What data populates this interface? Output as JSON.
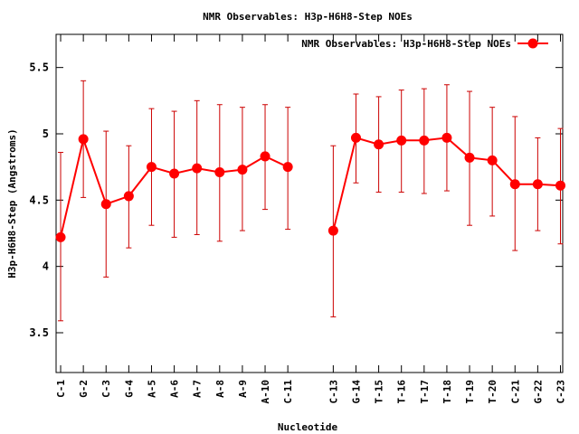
{
  "chart_data": {
    "type": "line",
    "title": "NMR Observables: H3p-H6H8-Step NOEs",
    "xlabel": "Nucleotide",
    "ylabel": "H3p-H6H8-Step (Angstroms)",
    "ylim": [
      3.2,
      5.75
    ],
    "yticks": [
      3.5,
      4,
      4.5,
      5,
      5.5
    ],
    "ytick_labels": [
      "3.5",
      "4",
      "4.5",
      "5",
      "5.5"
    ],
    "xlim": [
      0.8,
      23.1
    ],
    "grid": false,
    "legend_position": "top-right",
    "colors": {
      "series": "#ff0000",
      "errorbar": "#cc0000",
      "axis": "#000000"
    },
    "categories": [
      "C-1",
      "G-2",
      "C-3",
      "G-4",
      "A-5",
      "A-6",
      "A-7",
      "A-8",
      "A-9",
      "A-10",
      "C-11",
      "C-13",
      "G-14",
      "T-15",
      "T-16",
      "T-17",
      "T-18",
      "T-19",
      "T-20",
      "C-21",
      "G-22",
      "C-23"
    ],
    "x": [
      1,
      2,
      3,
      4,
      5,
      6,
      7,
      8,
      9,
      10,
      11,
      13,
      14,
      15,
      16,
      17,
      18,
      19,
      20,
      21,
      22,
      23
    ],
    "series": [
      {
        "name": "NMR Observables: H3p-H6H8-Step NOEs",
        "values": [
          4.22,
          4.96,
          4.47,
          4.53,
          4.75,
          4.7,
          4.74,
          4.71,
          4.73,
          4.83,
          4.75,
          4.27,
          4.97,
          4.92,
          4.95,
          4.95,
          4.97,
          4.82,
          4.8,
          4.62,
          4.62,
          4.61
        ],
        "err_low": [
          3.59,
          4.52,
          3.92,
          4.14,
          4.31,
          4.22,
          4.24,
          4.19,
          4.27,
          4.43,
          4.28,
          3.62,
          4.63,
          4.56,
          4.56,
          4.55,
          4.57,
          4.31,
          4.38,
          4.12,
          4.27,
          4.17
        ],
        "err_high": [
          4.86,
          5.4,
          5.02,
          4.91,
          5.19,
          5.17,
          5.25,
          5.22,
          5.2,
          5.22,
          5.2,
          4.91,
          5.3,
          5.28,
          5.33,
          5.34,
          5.37,
          5.32,
          5.2,
          5.13,
          4.97,
          5.04
        ],
        "segments": [
          [
            0,
            11
          ],
          [
            11,
            22
          ]
        ]
      }
    ]
  }
}
